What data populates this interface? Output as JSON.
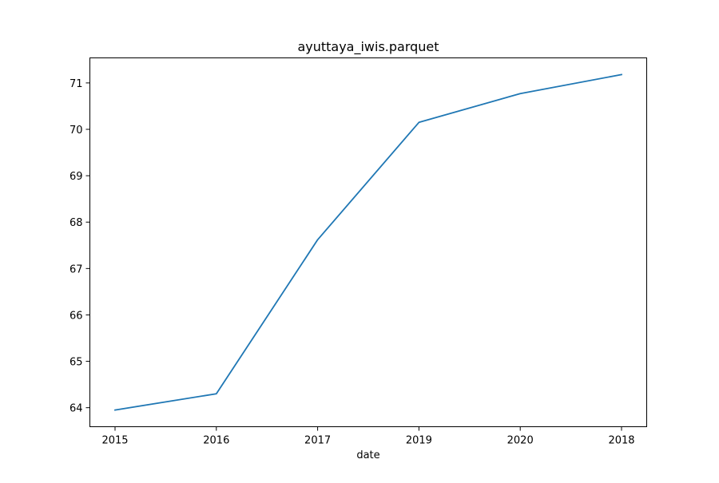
{
  "chart_data": {
    "type": "line",
    "title": "ayuttaya_iwis.parquet",
    "xlabel": "date",
    "ylabel": "",
    "categories": [
      "2015",
      "2016",
      "2017",
      "2019",
      "2020",
      "2018"
    ],
    "series": [
      {
        "values": [
          63.95,
          64.3,
          67.62,
          70.15,
          70.77,
          71.18
        ],
        "color": "#1f77b4"
      }
    ],
    "yticks": [
      "64",
      "65",
      "66",
      "67",
      "68",
      "69",
      "70",
      "71"
    ],
    "ylim": [
      63.59,
      71.54
    ],
    "grid": false,
    "legend": "none"
  }
}
